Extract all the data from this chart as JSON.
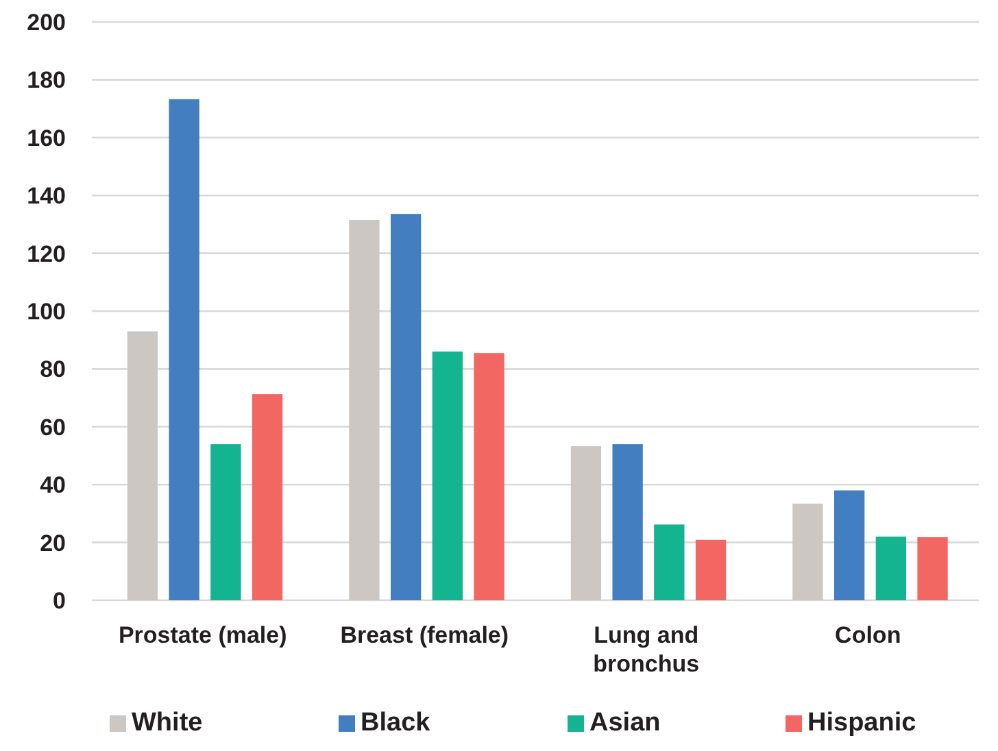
{
  "chart_data": {
    "type": "bar",
    "categories": [
      "Prostate (male)",
      "Breast (female)",
      "Lung and bronchus",
      "Colon"
    ],
    "series": [
      {
        "name": "White",
        "color": "#ccc7c3",
        "values": [
          93,
          131.5,
          53.3,
          33.4
        ]
      },
      {
        "name": "Black",
        "color": "#427ec0",
        "values": [
          173.3,
          133.6,
          54,
          38
        ]
      },
      {
        "name": "Asian",
        "color": "#13b48f",
        "values": [
          54,
          86,
          26.2,
          22
        ]
      },
      {
        "name": "Hispanic",
        "color": "#f26762",
        "values": [
          71.3,
          85.5,
          20.9,
          21.8
        ]
      }
    ],
    "ylim": [
      0,
      200
    ],
    "yticks": [
      0,
      20,
      40,
      60,
      80,
      100,
      120,
      140,
      160,
      180,
      200
    ],
    "grid": "y",
    "legend": "bottom"
  }
}
